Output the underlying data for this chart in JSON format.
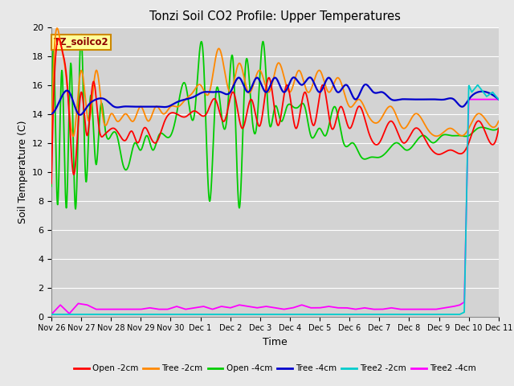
{
  "title": "Tonzi Soil CO2 Profile: Upper Temperatures",
  "xlabel": "Time",
  "ylabel": "Soil Temperature (C)",
  "ylim": [
    0,
    20
  ],
  "yticks": [
    0,
    2,
    4,
    6,
    8,
    10,
    12,
    14,
    16,
    18,
    20
  ],
  "background_color": "#e8e8e8",
  "plot_bg_color": "#d3d3d3",
  "legend_labels": [
    "Open -2cm",
    "Tree -2cm",
    "Open -4cm",
    "Tree -4cm",
    "Tree2 -2cm",
    "Tree2 -4cm"
  ],
  "legend_colors": [
    "#ff0000",
    "#ff8800",
    "#00cc00",
    "#0000cc",
    "#00cccc",
    "#ff00ff"
  ],
  "annotation_text": "TZ_soilco2",
  "annotation_bg": "#ffff99",
  "annotation_border": "#cc8800",
  "tick_labels": [
    "Nov 26",
    "Nov 27",
    "Nov 28",
    "Nov 29",
    "Nov 30",
    "Dec 1",
    "Dec 2",
    "Dec 3",
    "Dec 4",
    "Dec 5",
    "Dec 6",
    "Dec 7",
    "Dec 8",
    "Dec 9",
    "Dec 10",
    "Dec 11"
  ]
}
